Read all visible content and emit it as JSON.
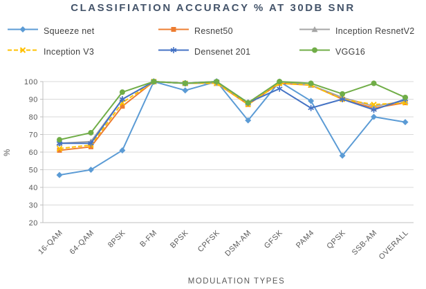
{
  "chart_data": {
    "type": "line",
    "title": "CLASSIFIATION ACCURACY % AT 30DB SNR",
    "xlabel": "MODULATION TYPES",
    "ylabel": "%",
    "ylim": [
      20,
      100
    ],
    "ytick_step": 10,
    "grid": true,
    "legend_position": "top",
    "categories": [
      "16-QAM",
      "64-QAM",
      "8PSK",
      "B-FM",
      "BPSK",
      "CPFSK",
      "DSM-AM",
      "GFSK",
      "PAM4",
      "QPSK",
      "SSB-AM",
      "OVERALL"
    ],
    "series": [
      {
        "name": "Squeeze net",
        "color": "#5B9BD5",
        "marker": "diamond",
        "dash": "solid",
        "values": [
          47,
          50,
          61,
          100,
          95,
          100,
          78,
          100,
          89,
          58,
          80,
          77
        ]
      },
      {
        "name": "Resnet50",
        "color": "#ED7D31",
        "marker": "square",
        "dash": "solid",
        "values": [
          61,
          63,
          86,
          100,
          99,
          99,
          87,
          99,
          98,
          90,
          85,
          88
        ]
      },
      {
        "name": "Inception ResnetV2",
        "color": "#A5A5A5",
        "marker": "triangle",
        "dash": "solid",
        "values": [
          65,
          66,
          90,
          100,
          99,
          99,
          88,
          100,
          98,
          91,
          86,
          89
        ]
      },
      {
        "name": "Inception V3",
        "color": "#FFC000",
        "marker": "x",
        "dash": "dashed",
        "values": [
          62,
          64,
          88,
          100,
          99,
          99,
          87,
          99,
          98,
          90,
          87,
          88
        ]
      },
      {
        "name": "Densenet 201",
        "color": "#4472C4",
        "marker": "asterisk",
        "dash": "solid",
        "values": [
          65,
          65,
          90,
          100,
          99,
          100,
          88,
          96,
          85,
          90,
          84,
          90
        ]
      },
      {
        "name": "VGG16",
        "color": "#70AD47",
        "marker": "circle",
        "dash": "solid",
        "values": [
          67,
          71,
          94,
          100,
          99,
          100,
          88,
          100,
          99,
          93,
          99,
          91
        ]
      }
    ],
    "axis_colors": {
      "grid": "#D9D9D9",
      "axis_line": "#BFBFBF",
      "tick_text": "#595959",
      "title_text": "#44546A"
    }
  }
}
